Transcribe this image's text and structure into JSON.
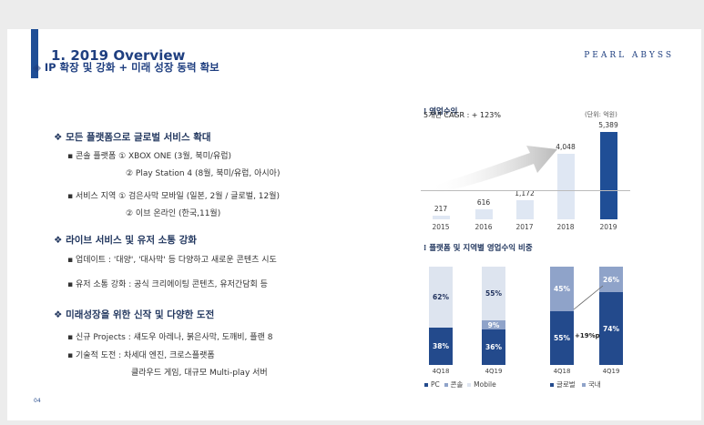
{
  "header": {
    "title": "1. 2019 Overview",
    "brand": "PEARL ABYSS",
    "page_number": "04"
  },
  "headline": "◈ IP 확장 및 강화 + 미래 성장 동력 확보",
  "sections": [
    {
      "title": "❖  모든 플랫폼으로 글로벌 서비스 확대",
      "lines": [
        "▪ 콘솔 플랫폼  ① XBOX ONE (3월, 북미/유럽)",
        "② Play Station 4 (8월, 북미/유럽, 아시아)",
        "▪ 서비스 지역  ① 검은사막 모바일 (일본, 2월 / 글로벌, 12월)",
        "② 이브 온라인 (한국,11월)"
      ]
    },
    {
      "title": "❖  라이브 서비스 및 유저 소통 강화",
      "lines": [
        "▪ 업데이트 : '대양', '대사막' 등 다양하고 새로운 콘텐츠 시도",
        "▪ 유저 소통 강화 : 공식 크리에이팅 콘텐츠, 유저간담회 등"
      ]
    },
    {
      "title": "❖  미래성장을 위한 신작 및 다양한 도전",
      "lines": [
        "▪ 신규 Projects : 섀도우 아레나, 붉은사막, 도깨비, 플랜 8",
        "▪ 기술적 도전 : 차세대 엔진, 크로스플랫폼",
        "클라우드 게임, 대규모 Multi-play 서버"
      ]
    }
  ],
  "chart_data": [
    {
      "type": "bar",
      "title": "영업수익",
      "unit": "(단위: 억원)",
      "annotation": "5개년 CAGR : + 123%",
      "categories": [
        "2015",
        "2016",
        "2017",
        "2018",
        "2019"
      ],
      "values": [
        217,
        616,
        1172,
        4048,
        5389
      ],
      "value_labels": [
        "217",
        "616",
        "1,172",
        "4,048",
        "5,389"
      ],
      "colors": [
        "#dfe7f3",
        "#dfe7f3",
        "#dfe7f3",
        "#dfe7f3",
        "#1f4e96"
      ]
    },
    {
      "type": "bar",
      "stacked": true,
      "title": "플랫폼 및 지역별 영업수익 비중",
      "groups": [
        {
          "categories": [
            "4Q18",
            "4Q19"
          ],
          "series": [
            {
              "name": "PC",
              "values": [
                38,
                36
              ],
              "labels": [
                "38%",
                "36%"
              ],
              "color": "#234a8c"
            },
            {
              "name": "콘솔",
              "values": [
                0,
                9
              ],
              "labels": [
                "",
                "9%"
              ],
              "color": "#8fa3c9"
            },
            {
              "name": "Mobile",
              "values": [
                62,
                55
              ],
              "labels": [
                "62%",
                "55%"
              ],
              "color": "#dde4ef"
            }
          ]
        },
        {
          "categories": [
            "4Q18",
            "4Q19"
          ],
          "series": [
            {
              "name": "글로벌",
              "values": [
                55,
                74
              ],
              "labels": [
                "55%",
                "74%"
              ],
              "color": "#234a8c"
            },
            {
              "name": "국내",
              "values": [
                45,
                26
              ],
              "labels": [
                "45%",
                "26%"
              ],
              "color": "#8fa3c9"
            }
          ],
          "callout": "+19%p"
        }
      ]
    }
  ]
}
